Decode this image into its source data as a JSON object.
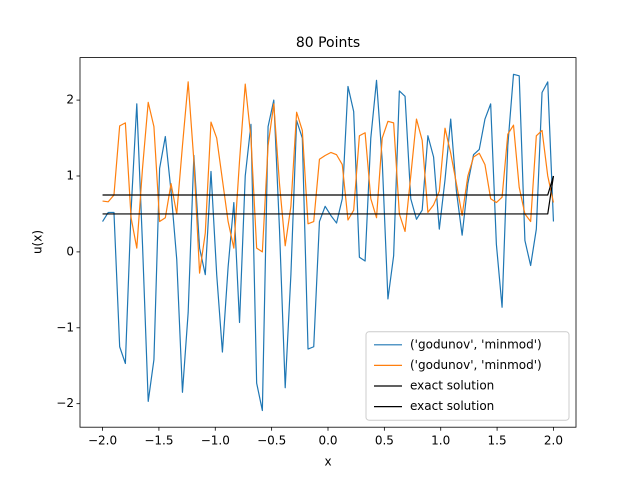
{
  "chart_data": {
    "type": "line",
    "title": "80 Points",
    "xlabel": "x",
    "ylabel": "u(x)",
    "x": [
      -2.0,
      -1.9494,
      -1.8987,
      -1.8481,
      -1.7975,
      -1.7468,
      -1.6962,
      -1.6456,
      -1.5949,
      -1.5443,
      -1.4937,
      -1.443,
      -1.3924,
      -1.3418,
      -1.2911,
      -1.2405,
      -1.1899,
      -1.1392,
      -1.0886,
      -1.038,
      -0.9873,
      -0.9367,
      -0.8861,
      -0.8354,
      -0.7848,
      -0.7342,
      -0.6835,
      -0.6329,
      -0.5823,
      -0.5316,
      -0.481,
      -0.4304,
      -0.3797,
      -0.3291,
      -0.2785,
      -0.2278,
      -0.1772,
      -0.1266,
      -0.0759,
      -0.0253,
      0.0253,
      0.0759,
      0.1266,
      0.1772,
      0.2278,
      0.2785,
      0.3291,
      0.3797,
      0.4304,
      0.481,
      0.5316,
      0.5823,
      0.6329,
      0.6835,
      0.7342,
      0.7848,
      0.8354,
      0.8861,
      0.9367,
      0.9873,
      1.038,
      1.0886,
      1.1392,
      1.1899,
      1.2405,
      1.2911,
      1.3418,
      1.3924,
      1.443,
      1.4937,
      1.5443,
      1.5949,
      1.6456,
      1.6962,
      1.7468,
      1.7975,
      1.8481,
      1.8987,
      1.9494,
      2.0
    ],
    "series": [
      {
        "name": "('godunov', 'minmod')",
        "color": "#1f77b4",
        "values": [
          0.4,
          0.52,
          0.52,
          -1.25,
          -1.47,
          0.55,
          1.95,
          0.1,
          -1.97,
          -1.42,
          1.1,
          1.52,
          0.8,
          -0.1,
          -1.85,
          -0.8,
          1.27,
          0.05,
          -0.3,
          1.06,
          -0.3,
          -1.32,
          -0.2,
          0.65,
          -0.93,
          1.0,
          1.68,
          -1.73,
          -2.09,
          1.65,
          2.0,
          0.3,
          -1.79,
          -0.3,
          1.73,
          1.5,
          -1.28,
          -1.25,
          0.4,
          0.6,
          0.48,
          0.38,
          0.7,
          2.18,
          1.85,
          -0.07,
          -0.12,
          1.5,
          2.26,
          1.2,
          -0.62,
          -0.05,
          2.12,
          2.05,
          0.7,
          0.43,
          0.55,
          1.53,
          1.25,
          0.3,
          0.95,
          1.75,
          0.8,
          0.22,
          0.9,
          1.28,
          1.35,
          1.75,
          1.95,
          0.1,
          -0.73,
          1.4,
          2.34,
          2.32,
          0.15,
          -0.18,
          0.3,
          2.1,
          2.24,
          0.4
        ]
      },
      {
        "name": "('godunov', 'minmod')",
        "color": "#ff7f0e",
        "values": [
          0.67,
          0.66,
          0.75,
          1.66,
          1.7,
          0.45,
          0.05,
          1.1,
          1.97,
          1.65,
          0.4,
          0.45,
          0.9,
          0.5,
          1.4,
          2.24,
          1.2,
          -0.28,
          0.25,
          1.71,
          1.5,
          0.95,
          0.4,
          0.05,
          1.2,
          2.21,
          1.5,
          0.05,
          0.0,
          1.4,
          1.95,
          0.9,
          0.08,
          0.6,
          1.84,
          1.6,
          0.37,
          0.4,
          1.22,
          1.27,
          1.31,
          1.28,
          1.15,
          0.42,
          0.55,
          1.53,
          1.57,
          0.7,
          0.45,
          1.5,
          1.72,
          1.7,
          0.5,
          0.27,
          1.0,
          1.75,
          1.47,
          0.52,
          0.62,
          0.8,
          1.63,
          1.3,
          0.9,
          0.48,
          1.0,
          1.25,
          1.3,
          1.15,
          0.7,
          0.65,
          0.72,
          1.55,
          1.67,
          0.85,
          0.5,
          0.4,
          1.53,
          1.6,
          1.0,
          0.65
        ]
      },
      {
        "name": "exact solution",
        "color": "#000000",
        "values": [
          0.75,
          0.75,
          0.75,
          0.75,
          0.75,
          0.75,
          0.75,
          0.75,
          0.75,
          0.75,
          0.75,
          0.75,
          0.75,
          0.75,
          0.75,
          0.75,
          0.75,
          0.75,
          0.75,
          0.75,
          0.75,
          0.75,
          0.75,
          0.75,
          0.75,
          0.75,
          0.75,
          0.75,
          0.75,
          0.75,
          0.75,
          0.75,
          0.75,
          0.75,
          0.75,
          0.75,
          0.75,
          0.75,
          0.75,
          0.75,
          0.75,
          0.75,
          0.75,
          0.75,
          0.75,
          0.75,
          0.75,
          0.75,
          0.75,
          0.75,
          0.75,
          0.75,
          0.75,
          0.75,
          0.75,
          0.75,
          0.75,
          0.75,
          0.75,
          0.75,
          0.75,
          0.75,
          0.75,
          0.75,
          0.75,
          0.75,
          0.75,
          0.75,
          0.75,
          0.75,
          0.75,
          0.75,
          0.75,
          0.75,
          0.75,
          0.75,
          0.75,
          0.75,
          0.75,
          1.0
        ]
      },
      {
        "name": "exact solution",
        "color": "#000000",
        "values": [
          0.5,
          0.5,
          0.5,
          0.5,
          0.5,
          0.5,
          0.5,
          0.5,
          0.5,
          0.5,
          0.5,
          0.5,
          0.5,
          0.5,
          0.5,
          0.5,
          0.5,
          0.5,
          0.5,
          0.5,
          0.5,
          0.5,
          0.5,
          0.5,
          0.5,
          0.5,
          0.5,
          0.5,
          0.5,
          0.5,
          0.5,
          0.5,
          0.5,
          0.5,
          0.5,
          0.5,
          0.5,
          0.5,
          0.5,
          0.5,
          0.5,
          0.5,
          0.5,
          0.5,
          0.5,
          0.5,
          0.5,
          0.5,
          0.5,
          0.5,
          0.5,
          0.5,
          0.5,
          0.5,
          0.5,
          0.5,
          0.5,
          0.5,
          0.5,
          0.5,
          0.5,
          0.5,
          0.5,
          0.5,
          0.5,
          0.5,
          0.5,
          0.5,
          0.5,
          0.5,
          0.5,
          0.5,
          0.5,
          0.5,
          0.5,
          0.5,
          0.5,
          0.5,
          0.5,
          1.0
        ]
      }
    ],
    "xlim": [
      -2.2,
      2.2
    ],
    "ylim": [
      -2.31,
      2.56
    ],
    "xticks": [
      {
        "value": -2.0,
        "label": "−2.0"
      },
      {
        "value": -1.5,
        "label": "−1.5"
      },
      {
        "value": -1.0,
        "label": "−1.0"
      },
      {
        "value": -0.5,
        "label": "−0.5"
      },
      {
        "value": 0.0,
        "label": "0.0"
      },
      {
        "value": 0.5,
        "label": "0.5"
      },
      {
        "value": 1.0,
        "label": "1.0"
      },
      {
        "value": 1.5,
        "label": "1.5"
      },
      {
        "value": 2.0,
        "label": "2.0"
      }
    ],
    "yticks": [
      {
        "value": -2,
        "label": "−2"
      },
      {
        "value": -1,
        "label": "−1"
      },
      {
        "value": 0,
        "label": "0"
      },
      {
        "value": 1,
        "label": "1"
      },
      {
        "value": 2,
        "label": "2"
      }
    ],
    "grid": false,
    "legend": "lower right"
  }
}
